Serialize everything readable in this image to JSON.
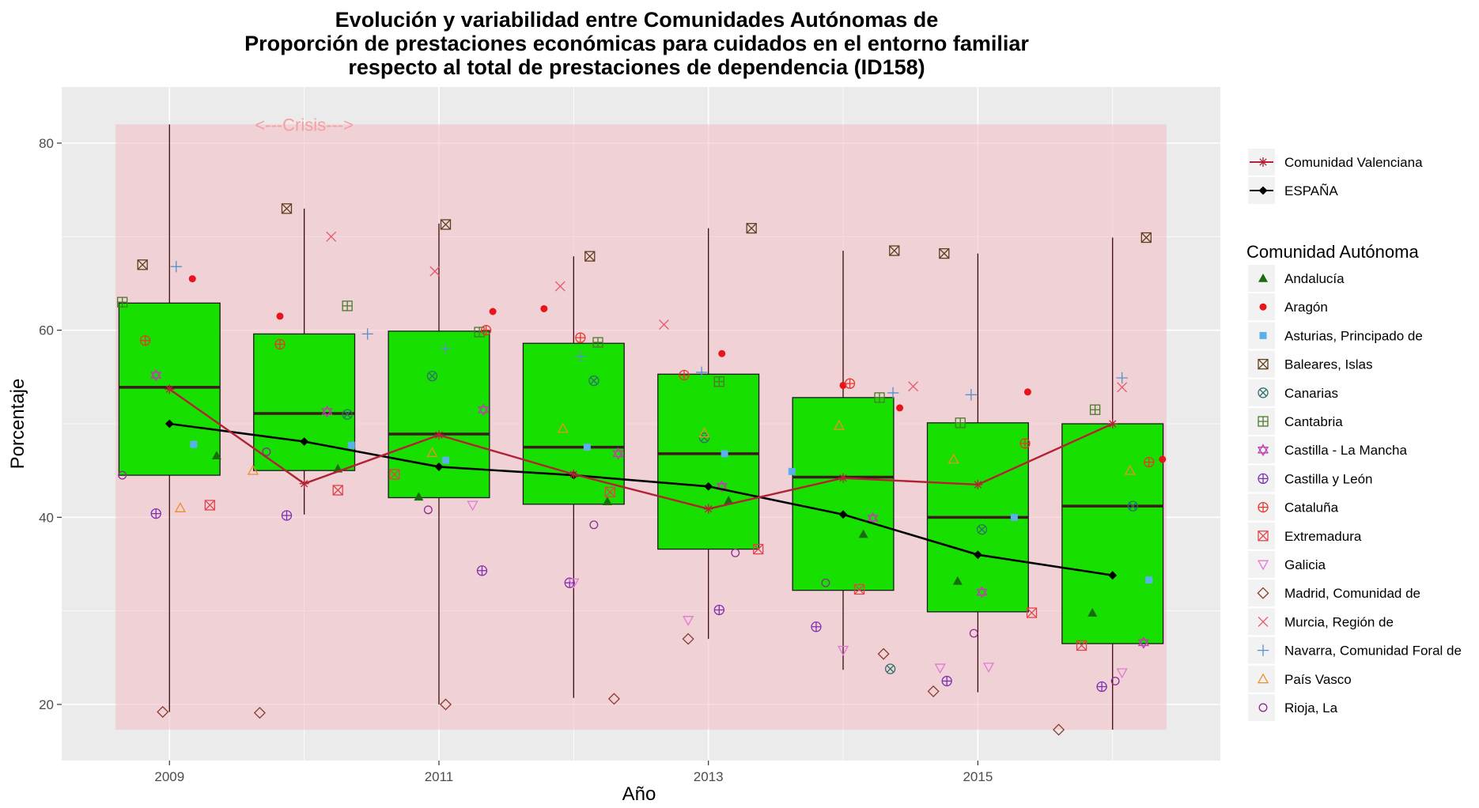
{
  "chart_data": {
    "type": "boxplot",
    "title": [
      "Evolución y variabilidad entre Comunidades Autónomas de",
      "Proporción de prestaciones económicas para cuidados en el entorno familiar",
      "respecto al total de prestaciones de dependencia (ID158)"
    ],
    "xlabel": "Año",
    "ylabel": "Porcentaje",
    "x_ticks": [
      2009,
      2011,
      2013,
      2015
    ],
    "y_ticks": [
      20,
      40,
      60,
      80
    ],
    "xlim": [
      2008.2,
      2016.8
    ],
    "ylim": [
      14,
      86
    ],
    "grid": true,
    "annotation": {
      "text": "<---Crisis--->",
      "x": 2010.0,
      "y": 81.8
    },
    "crisis_band": {
      "x0": 2008.6,
      "x1": 2016.4,
      "y0": 17.3,
      "y1": 82.0,
      "color": "#f3b8c2"
    },
    "boxes": [
      {
        "year": 2009,
        "q1": 44.5,
        "median": 53.9,
        "q3": 62.9,
        "min": 19.2,
        "max": 82.0
      },
      {
        "year": 2010,
        "q1": 45.0,
        "median": 51.1,
        "q3": 59.6,
        "min": 40.3,
        "max": 73.0
      },
      {
        "year": 2011,
        "q1": 42.1,
        "median": 48.9,
        "q3": 59.9,
        "min": 20.0,
        "max": 71.4
      },
      {
        "year": 2012,
        "q1": 41.4,
        "median": 47.5,
        "q3": 58.6,
        "min": 20.7,
        "max": 67.9
      },
      {
        "year": 2013,
        "q1": 36.6,
        "median": 46.8,
        "q3": 55.3,
        "min": 27.0,
        "max": 70.9
      },
      {
        "year": 2014,
        "q1": 32.2,
        "median": 44.3,
        "q3": 52.8,
        "min": 23.7,
        "max": 68.5
      },
      {
        "year": 2015,
        "q1": 29.9,
        "median": 40.0,
        "q3": 50.1,
        "min": 21.3,
        "max": 68.2
      },
      {
        "year": 2016,
        "q1": 26.5,
        "median": 41.2,
        "q3": 50.0,
        "min": 17.3,
        "max": 69.9
      }
    ],
    "box_fill": "#17e000",
    "legend_top": [
      {
        "name": "Comunidad Valenciana",
        "color": "#b22234",
        "shape": "asterisk"
      },
      {
        "name": "ESPAÑA",
        "color": "#000000",
        "shape": "diamond-filled"
      }
    ],
    "legend_title": "Comunidad Autónoma",
    "series": [
      {
        "name": "ESPAÑA",
        "color": "#000000",
        "type": "line",
        "x": [
          2009,
          2010,
          2011,
          2012,
          2013,
          2014,
          2015,
          2016
        ],
        "y": [
          50.0,
          48.1,
          45.4,
          44.5,
          43.3,
          40.3,
          36.0,
          33.8
        ]
      },
      {
        "name": "Comunidad Valenciana",
        "color": "#b22234",
        "type": "line",
        "x": [
          2009,
          2010,
          2011,
          2012,
          2013,
          2014,
          2015,
          2016
        ],
        "y": [
          53.7,
          43.6,
          48.8,
          44.6,
          40.9,
          44.2,
          43.5,
          50.0
        ]
      },
      {
        "name": "Andalucía",
        "color": "#1a6b10",
        "shape": "triangle-filled",
        "x": [
          2009.35,
          2010.25,
          2010.85,
          2012.25,
          2013.15,
          2014.15,
          2014.85,
          2015.85
        ],
        "y": [
          46.6,
          45.2,
          42.2,
          41.7,
          41.8,
          38.2,
          33.2,
          29.8
        ]
      },
      {
        "name": "Aragón",
        "color": "#e8141c",
        "shape": "circle-filled",
        "x": [
          2009.17,
          2009.82,
          2011.4,
          2011.78,
          2013.1,
          2014.0,
          2014.42,
          2015.37,
          2016.37
        ],
        "y": [
          65.5,
          61.5,
          62.0,
          62.3,
          57.5,
          54.1,
          51.7,
          53.4,
          46.2
        ]
      },
      {
        "name": "Asturias, Principado de",
        "color": "#5ab0e8",
        "shape": "square-filled",
        "x": [
          2009.18,
          2010.35,
          2011.05,
          2012.1,
          2013.12,
          2013.62,
          2015.27,
          2016.27
        ],
        "y": [
          47.8,
          47.7,
          46.1,
          47.5,
          46.8,
          44.9,
          40.0,
          33.3
        ]
      },
      {
        "name": "Baleares, Islas",
        "color": "#5e3f1e",
        "shape": "square-x",
        "x": [
          2008.8,
          2009.87,
          2011.05,
          2012.12,
          2013.32,
          2014.38,
          2014.75,
          2016.25
        ],
        "y": [
          67.0,
          73.0,
          71.3,
          67.9,
          70.9,
          68.5,
          68.2,
          69.9
        ]
      },
      {
        "name": "Canarias",
        "color": "#2f6f6a",
        "shape": "circle-x",
        "x": [
          2010.32,
          2010.95,
          2012.15,
          2012.97,
          2014.35,
          2015.03,
          2016.15
        ],
        "y": [
          51.0,
          55.1,
          54.6,
          48.5,
          23.8,
          38.7,
          41.2
        ]
      },
      {
        "name": "Cantabria",
        "color": "#4b7a2a",
        "shape": "square-plus",
        "x": [
          2008.65,
          2010.32,
          2011.3,
          2012.18,
          2013.08,
          2014.27,
          2014.87,
          2015.87
        ],
        "y": [
          63.0,
          62.6,
          59.8,
          58.7,
          54.5,
          52.8,
          50.1,
          51.5
        ]
      },
      {
        "name": "Castilla - La Mancha",
        "color": "#c03cb0",
        "shape": "star-david",
        "x": [
          2008.9,
          2010.17,
          2011.33,
          2012.33,
          2013.1,
          2014.22,
          2015.03,
          2016.23
        ],
        "y": [
          55.2,
          51.3,
          51.5,
          46.8,
          43.3,
          39.9,
          32.0,
          26.6
        ]
      },
      {
        "name": "Castilla y León",
        "color": "#7e2fb0",
        "shape": "circle-plus",
        "x": [
          2008.9,
          2009.87,
          2011.32,
          2011.97,
          2013.08,
          2013.8,
          2014.77,
          2015.92
        ],
        "y": [
          40.4,
          40.2,
          34.3,
          33.0,
          30.1,
          28.3,
          22.5,
          21.9
        ]
      },
      {
        "name": "Cataluña",
        "color": "#e8352c",
        "shape": "circle-plus-red",
        "x": [
          2008.82,
          2009.82,
          2011.35,
          2012.05,
          2012.82,
          2014.05,
          2015.35,
          2016.27
        ],
        "y": [
          58.9,
          58.5,
          60.0,
          59.2,
          55.2,
          54.3,
          47.9,
          45.9
        ]
      },
      {
        "name": "Extremadura",
        "color": "#e0444a",
        "shape": "square-x-red",
        "x": [
          2009.3,
          2010.25,
          2010.67,
          2012.27,
          2013.37,
          2014.12,
          2015.4,
          2015.77
        ],
        "y": [
          41.3,
          42.9,
          44.6,
          42.7,
          36.6,
          32.3,
          29.8,
          26.3
        ]
      },
      {
        "name": "Galicia",
        "color": "#e27ad2",
        "shape": "triangle-down",
        "x": [
          2011.25,
          2012.0,
          2012.85,
          2014.0,
          2014.72,
          2015.08,
          2016.07
        ],
        "y": [
          41.3,
          33.0,
          29.0,
          25.8,
          23.9,
          24.0,
          23.4
        ]
      },
      {
        "name": "Madrid, Comunidad de",
        "color": "#8b3a2b",
        "shape": "diamond-open",
        "x": [
          2008.95,
          2009.67,
          2011.05,
          2012.3,
          2012.85,
          2014.3,
          2014.67,
          2015.6
        ],
        "y": [
          19.2,
          19.1,
          20.0,
          20.6,
          27.0,
          25.4,
          21.4,
          17.3
        ]
      },
      {
        "name": "Murcia, Región de",
        "color": "#e8556a",
        "shape": "cross-x",
        "x": [
          2010.2,
          2010.97,
          2011.9,
          2012.67,
          2014.52,
          2016.07
        ],
        "y": [
          70.0,
          66.3,
          64.7,
          60.6,
          54.0,
          53.9
        ]
      },
      {
        "name": "Navarra, Comunidad Foral de",
        "color": "#5a8fc8",
        "shape": "plus",
        "x": [
          2009.05,
          2010.47,
          2011.05,
          2012.05,
          2012.95,
          2014.37,
          2014.95,
          2016.07
        ],
        "y": [
          66.8,
          59.6,
          58.0,
          57.2,
          55.5,
          53.3,
          53.1,
          54.9
        ]
      },
      {
        "name": "País Vasco",
        "color": "#f08c2c",
        "shape": "triangle-open",
        "x": [
          2009.08,
          2009.62,
          2010.95,
          2011.92,
          2012.97,
          2013.97,
          2014.82,
          2016.13
        ],
        "y": [
          41.0,
          45.0,
          46.9,
          49.5,
          49.0,
          49.8,
          46.2,
          45.0
        ]
      },
      {
        "name": "Rioja, La",
        "color": "#8a2b90",
        "shape": "circle-open",
        "x": [
          2008.65,
          2009.72,
          2010.92,
          2012.15,
          2013.2,
          2013.87,
          2014.97,
          2016.02
        ],
        "y": [
          44.5,
          47.0,
          40.8,
          39.2,
          36.2,
          33.0,
          27.6,
          22.5
        ]
      }
    ]
  }
}
